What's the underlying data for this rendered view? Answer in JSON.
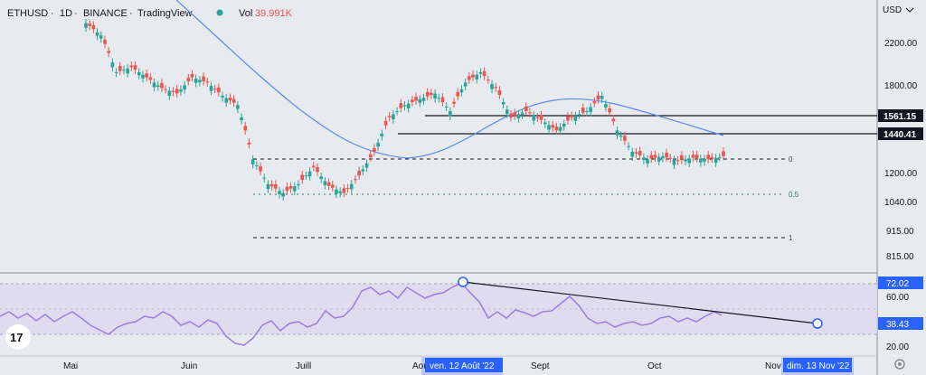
{
  "header": {
    "symbol": "ETHUSD",
    "interval": "1D",
    "exchange": "BINANCE",
    "provider": "TradingView",
    "vol_label": "Vol",
    "vol_value": "39.991K"
  },
  "colors": {
    "background": "#e7eaee",
    "bull": "#26a69a",
    "bear": "#ef5350",
    "ma_line": "#5b8def",
    "rsi_line": "#9c7de0",
    "rsi_band": "#ddd6ef",
    "price_label_bg": "#131722",
    "highlight_blue": "#2962ff"
  },
  "price_axis": {
    "currency": "USD",
    "ticks": [
      "2200.00",
      "1800.00",
      "1200.00",
      "1040.00",
      "915.00",
      "815.00"
    ],
    "tag_1561": "1561.15",
    "tag_1440": "1440.41"
  },
  "fib_levels": {
    "zero": "0",
    "half": "0.5",
    "one": "1"
  },
  "rsi_axis": {
    "top_tag": "72.02",
    "tick_60": "60.00",
    "current_tag": "38.43",
    "tick_20": "20.00"
  },
  "time_axis": {
    "months": [
      "Mai",
      "Juin",
      "Juill",
      "Sept",
      "Oct"
    ],
    "partial_aou": "Aou",
    "partial_nov": "Nov",
    "tag_start": "ven. 12 Août '22",
    "tag_end": "dim. 13 Nov '22"
  },
  "chart_data": {
    "type": "candlestick",
    "y_scale": "log",
    "ylim": [
      800,
      2500
    ],
    "candles_approx_close": [
      2550,
      2400,
      2000,
      2050,
      1950,
      1850,
      1800,
      1950,
      1900,
      1780,
      1700,
      1300,
      1150,
      1100,
      1150,
      1250,
      1140,
      1100,
      1200,
      1350,
      1600,
      1700,
      1750,
      1800,
      1650,
      1900,
      2000,
      1850,
      1600,
      1650,
      1580,
      1500,
      1600,
      1650,
      1780,
      1500,
      1350,
      1300,
      1320,
      1290,
      1310,
      1300,
      1320
    ]
  }
}
